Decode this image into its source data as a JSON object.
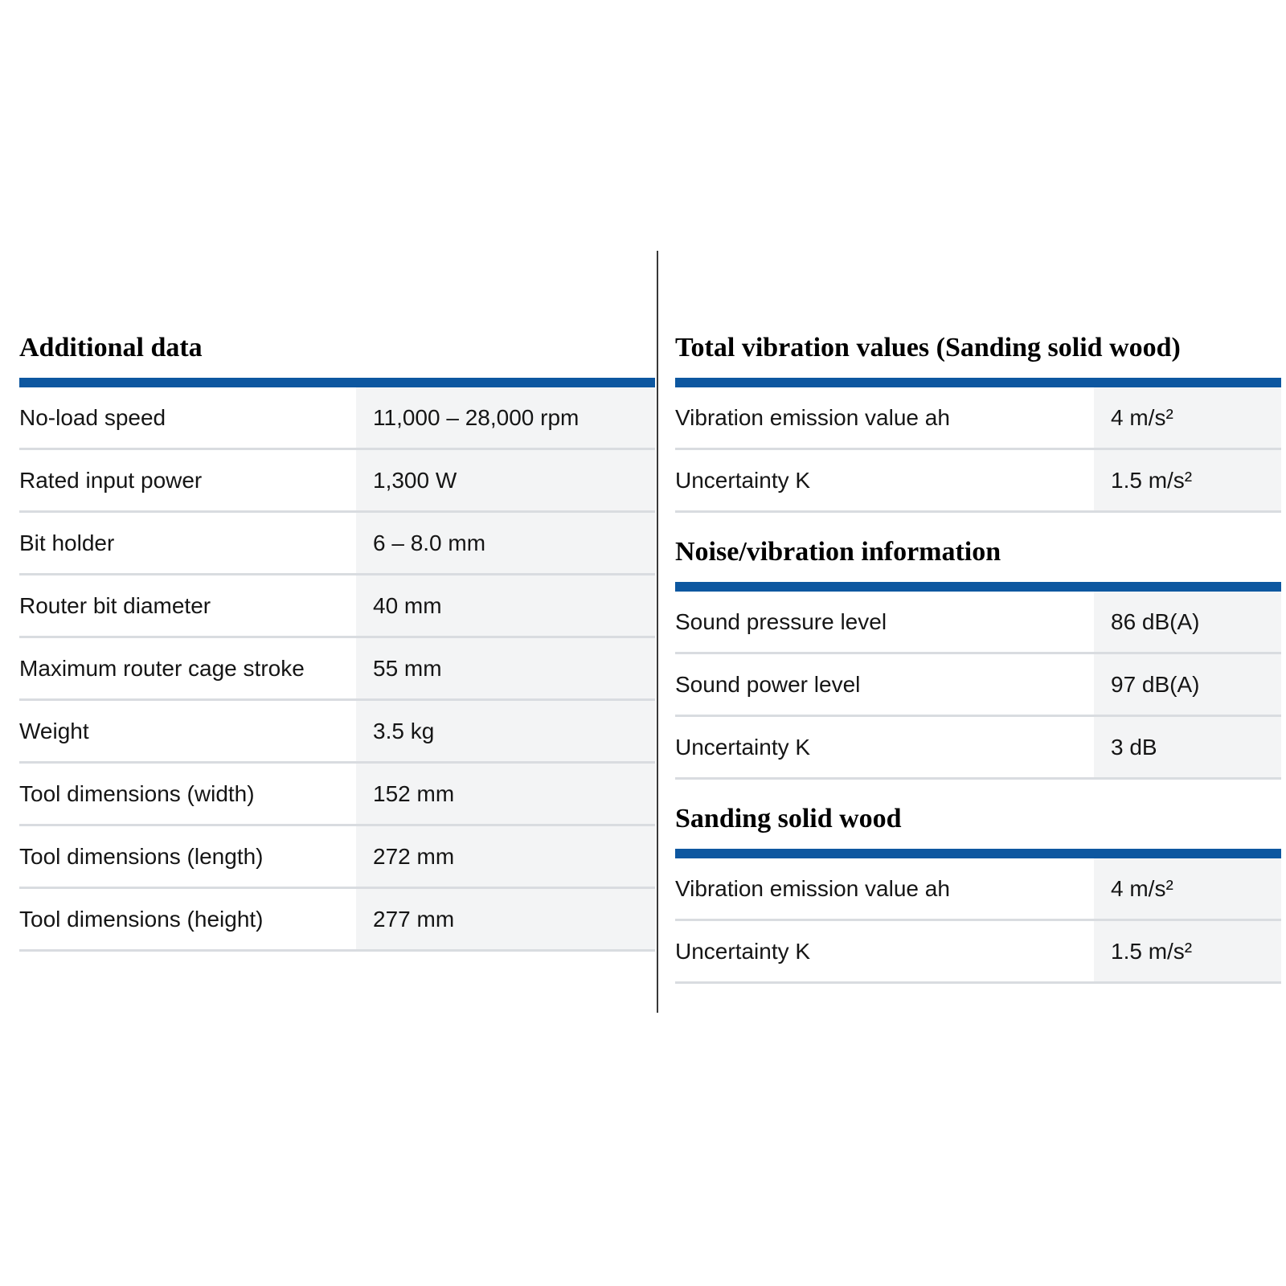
{
  "colors": {
    "accent_bar_blue": "#0d57a0",
    "value_cell_bg": "#f3f4f5",
    "row_separator": "#d9dce0",
    "column_divider": "#383838",
    "heading_text": "#000000",
    "body_text": "#151515",
    "page_bg": "#ffffff"
  },
  "columns": {
    "left": {
      "sections": [
        {
          "heading": "Additional data",
          "rows": [
            {
              "label": "No-load speed",
              "value": "11,000 – 28,000 rpm"
            },
            {
              "label": "Rated input power",
              "value": "1,300 W"
            },
            {
              "label": "Bit holder",
              "value": "6 – 8.0 mm"
            },
            {
              "label": "Router bit diameter",
              "value": "40 mm"
            },
            {
              "label": "Maximum router cage stroke",
              "value": "55 mm"
            },
            {
              "label": "Weight",
              "value": "3.5 kg"
            },
            {
              "label": "Tool dimensions (width)",
              "value": "152 mm"
            },
            {
              "label": "Tool dimensions (length)",
              "value": "272 mm"
            },
            {
              "label": "Tool dimensions (height)",
              "value": "277 mm"
            }
          ]
        }
      ]
    },
    "right": {
      "sections": [
        {
          "heading": "Total vibration values (Sanding solid wood)",
          "rows": [
            {
              "label": "Vibration emission value ah",
              "value": "4 m/s²"
            },
            {
              "label": "Uncertainty K",
              "value": "1.5 m/s²"
            }
          ]
        },
        {
          "heading": "Noise/vibration information",
          "rows": [
            {
              "label": "Sound pressure level",
              "value": "86 dB(A)"
            },
            {
              "label": "Sound power level",
              "value": "97 dB(A)"
            },
            {
              "label": "Uncertainty K",
              "value": "3 dB"
            }
          ]
        },
        {
          "heading": "Sanding solid wood",
          "rows": [
            {
              "label": "Vibration emission value ah",
              "value": "4 m/s²"
            },
            {
              "label": "Uncertainty K",
              "value": "1.5 m/s²"
            }
          ]
        }
      ]
    }
  }
}
